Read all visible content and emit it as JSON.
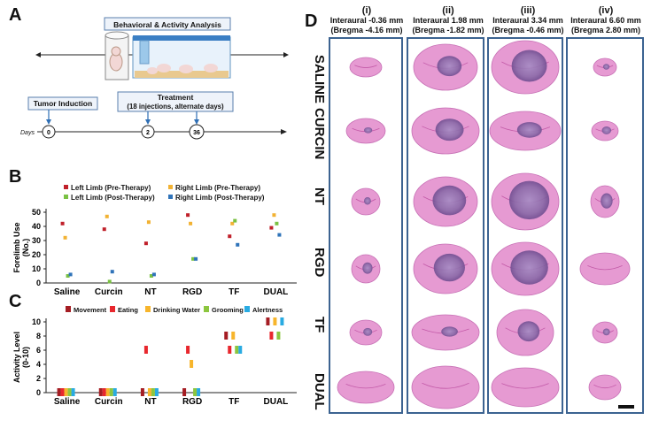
{
  "panel_a": {
    "letter": "A",
    "title": "Behavioral & Activity Analysis",
    "tumor_box": "Tumor Induction",
    "treatment_line1": "Treatment",
    "treatment_line2": "(18 injections, alternate days)",
    "days_label": "Days",
    "timeline_days": [
      "0",
      "2",
      "36"
    ]
  },
  "panel_b": {
    "letter": "B"
  },
  "panel_c": {
    "letter": "C"
  },
  "panel_d": {
    "letter": "D",
    "columns": [
      {
        "num": "(i)",
        "line1": "Interaural -0.36 mm",
        "line2": "(Bregma -4.16 mm)"
      },
      {
        "num": "(ii)",
        "line1": "Interaural 1.98 mm",
        "line2": "(Bregma -1.82 mm)"
      },
      {
        "num": "(iii)",
        "line1": "Interaural 3.34 mm",
        "line2": "(Bregma -0.46 mm)"
      },
      {
        "num": "(iv)",
        "line1": "Interaural 6.60 mm",
        "line2": "(Bregma 2.80 mm)"
      }
    ],
    "rows": [
      "SALINE",
      "CURCIN",
      "NT",
      "RGD",
      "TF",
      "DUAL"
    ]
  },
  "chart_data": [
    {
      "type": "scatter",
      "panel": "B",
      "ylabel": "Forelimb Use (No.)",
      "xlabel": "",
      "ylim": [
        0,
        50
      ],
      "yticks": [
        0,
        10,
        20,
        30,
        40,
        50
      ],
      "categories": [
        "Saline",
        "Curcin",
        "NT",
        "RGD",
        "TF",
        "DUAL"
      ],
      "legend": "top",
      "series": [
        {
          "name": "Left Limb (Pre-Therapy)",
          "color": "#c0202a",
          "values": [
            42,
            38,
            28,
            48,
            33,
            39
          ]
        },
        {
          "name": "Right Limb (Pre-Therapy)",
          "color": "#f2b233",
          "values": [
            32,
            47,
            43,
            42,
            42,
            48
          ]
        },
        {
          "name": "Left Limb (Post-Therapy)",
          "color": "#7ac143",
          "values": [
            5,
            1,
            5,
            17,
            44,
            42
          ]
        },
        {
          "name": "Right Limb (Post-Therapy)",
          "color": "#2f73b9",
          "values": [
            6,
            8,
            6,
            17,
            27,
            34
          ]
        }
      ]
    },
    {
      "type": "bar",
      "panel": "C",
      "ylabel": "Activity Level (0-10)",
      "xlabel": "",
      "ylim": [
        0,
        10
      ],
      "yticks": [
        0,
        2,
        4,
        6,
        8,
        10
      ],
      "categories": [
        "Saline",
        "Curcin",
        "NT",
        "RGD",
        "TF",
        "DUAL"
      ],
      "legend": "top",
      "series": [
        {
          "name": "Movement",
          "color": "#a51d23",
          "values": [
            0,
            0,
            0,
            0,
            8,
            10
          ]
        },
        {
          "name": "Eating",
          "color": "#e8272d",
          "values": [
            0,
            0,
            6,
            6,
            6,
            8
          ]
        },
        {
          "name": "Drinking Water",
          "color": "#f7b52c",
          "values": [
            0,
            0,
            0,
            4,
            8,
            10
          ]
        },
        {
          "name": "Grooming",
          "color": "#8cc63f",
          "values": [
            0,
            0,
            0,
            0,
            6,
            8
          ]
        },
        {
          "name": "Alertness",
          "color": "#29abe2",
          "values": [
            0,
            0,
            0,
            0,
            6,
            10
          ]
        }
      ]
    }
  ]
}
